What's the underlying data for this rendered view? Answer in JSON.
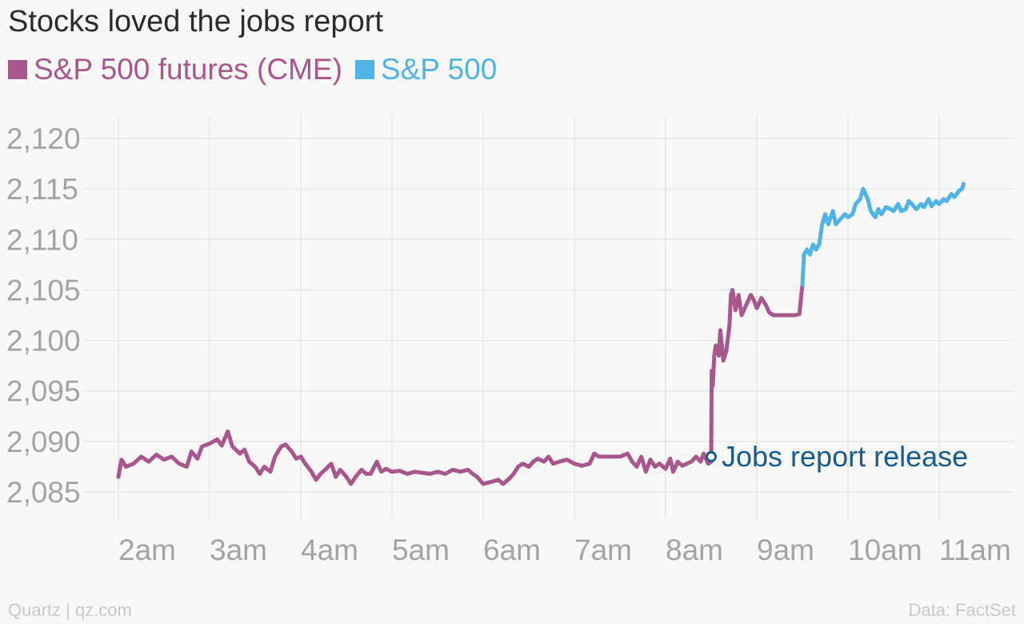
{
  "chart_data": {
    "type": "line",
    "title": "Stocks loved the jobs report",
    "xlabel": "",
    "ylabel": "",
    "x_ticks": [
      "2am",
      "3am",
      "4am",
      "5am",
      "6am",
      "7am",
      "8am",
      "9am",
      "10am",
      "11am"
    ],
    "y_ticks": [
      "2,085",
      "2,090",
      "2,095",
      "2,100",
      "2,105",
      "2,110",
      "2,115",
      "2,120"
    ],
    "ylim": [
      2083,
      2122
    ],
    "xlim": [
      "1:50am",
      "11:45am"
    ],
    "grid": true,
    "legend_position": "top-left",
    "series": [
      {
        "name": "S&P 500 futures (CME)",
        "color": "#a8578d",
        "points": [
          [
            "2:00",
            2086.5
          ],
          [
            "2:02",
            2088.2
          ],
          [
            "2:05",
            2087.5
          ],
          [
            "2:10",
            2087.8
          ],
          [
            "2:15",
            2088.5
          ],
          [
            "2:20",
            2088.0
          ],
          [
            "2:25",
            2088.7
          ],
          [
            "2:30",
            2088.2
          ],
          [
            "2:35",
            2088.5
          ],
          [
            "2:40",
            2087.8
          ],
          [
            "2:45",
            2087.5
          ],
          [
            "2:48",
            2089.0
          ],
          [
            "2:52",
            2088.3
          ],
          [
            "2:55",
            2089.5
          ],
          [
            "3:00",
            2089.8
          ],
          [
            "3:05",
            2090.2
          ],
          [
            "3:08",
            2089.6
          ],
          [
            "3:12",
            2091.0
          ],
          [
            "3:15",
            2089.5
          ],
          [
            "3:20",
            2088.8
          ],
          [
            "3:23",
            2089.2
          ],
          [
            "3:26",
            2088.0
          ],
          [
            "3:30",
            2087.5
          ],
          [
            "3:33",
            2086.8
          ],
          [
            "3:36",
            2087.5
          ],
          [
            "3:40",
            2087.0
          ],
          [
            "3:43",
            2088.5
          ],
          [
            "3:47",
            2089.5
          ],
          [
            "3:50",
            2089.7
          ],
          [
            "3:54",
            2089.0
          ],
          [
            "3:57",
            2088.3
          ],
          [
            "4:00",
            2088.5
          ],
          [
            "4:03",
            2087.8
          ],
          [
            "4:07",
            2087.0
          ],
          [
            "4:10",
            2086.2
          ],
          [
            "4:13",
            2086.8
          ],
          [
            "4:16",
            2087.2
          ],
          [
            "4:20",
            2087.8
          ],
          [
            "4:23",
            2086.5
          ],
          [
            "4:26",
            2087.2
          ],
          [
            "4:30",
            2086.5
          ],
          [
            "4:33",
            2085.8
          ],
          [
            "4:36",
            2086.5
          ],
          [
            "4:40",
            2087.2
          ],
          [
            "4:43",
            2086.8
          ],
          [
            "4:46",
            2086.8
          ],
          [
            "4:50",
            2088.0
          ],
          [
            "4:53",
            2087.0
          ],
          [
            "4:56",
            2087.3
          ],
          [
            "5:00",
            2087.0
          ],
          [
            "5:05",
            2087.1
          ],
          [
            "5:10",
            2086.8
          ],
          [
            "5:15",
            2087.0
          ],
          [
            "5:20",
            2086.9
          ],
          [
            "5:25",
            2086.8
          ],
          [
            "5:30",
            2087.0
          ],
          [
            "5:35",
            2086.8
          ],
          [
            "5:40",
            2087.2
          ],
          [
            "5:45",
            2087.0
          ],
          [
            "5:50",
            2087.2
          ],
          [
            "5:53",
            2086.8
          ],
          [
            "5:56",
            2086.5
          ],
          [
            "6:00",
            2085.8
          ],
          [
            "6:05",
            2086.0
          ],
          [
            "6:10",
            2086.2
          ],
          [
            "6:13",
            2085.8
          ],
          [
            "6:17",
            2086.3
          ],
          [
            "6:20",
            2086.8
          ],
          [
            "6:23",
            2087.5
          ],
          [
            "6:26",
            2087.8
          ],
          [
            "6:30",
            2087.5
          ],
          [
            "6:33",
            2088.0
          ],
          [
            "6:36",
            2088.3
          ],
          [
            "6:40",
            2088.0
          ],
          [
            "6:43",
            2088.5
          ],
          [
            "6:46",
            2087.8
          ],
          [
            "6:50",
            2088.0
          ],
          [
            "6:55",
            2088.2
          ],
          [
            "7:00",
            2087.8
          ],
          [
            "7:05",
            2087.6
          ],
          [
            "7:10",
            2087.8
          ],
          [
            "7:13",
            2088.8
          ],
          [
            "7:16",
            2088.5
          ],
          [
            "7:20",
            2088.5
          ],
          [
            "7:25",
            2088.5
          ],
          [
            "7:30",
            2088.5
          ],
          [
            "7:35",
            2088.8
          ],
          [
            "7:38",
            2088.0
          ],
          [
            "7:41",
            2087.5
          ],
          [
            "7:44",
            2088.5
          ],
          [
            "7:47",
            2087.0
          ],
          [
            "7:50",
            2088.2
          ],
          [
            "7:53",
            2087.5
          ],
          [
            "7:56",
            2087.8
          ],
          [
            "8:00",
            2087.3
          ],
          [
            "8:03",
            2088.3
          ],
          [
            "8:05",
            2087.0
          ],
          [
            "8:08",
            2088.0
          ],
          [
            "8:11",
            2087.6
          ],
          [
            "8:14",
            2087.8
          ],
          [
            "8:17",
            2088.0
          ],
          [
            "8:20",
            2088.5
          ],
          [
            "8:23",
            2088.0
          ],
          [
            "8:25",
            2088.8
          ],
          [
            "8:28",
            2087.8
          ],
          [
            "8:30",
            2088.0
          ],
          [
            "8:30.3",
            2097.0
          ],
          [
            "8:31",
            2095.5
          ],
          [
            "8:32",
            2098.5
          ],
          [
            "8:33",
            2099.5
          ],
          [
            "8:35",
            2098.5
          ],
          [
            "8:36",
            2101.0
          ],
          [
            "8:38",
            2098.0
          ],
          [
            "8:40",
            2099.0
          ],
          [
            "8:42",
            2101.5
          ],
          [
            "8:43",
            2104.5
          ],
          [
            "8:44",
            2105.0
          ],
          [
            "8:46",
            2103.0
          ],
          [
            "8:48",
            2104.5
          ],
          [
            "8:50",
            2102.5
          ],
          [
            "8:53",
            2103.5
          ],
          [
            "8:56",
            2104.5
          ],
          [
            "8:58",
            2104.0
          ],
          [
            "9:00",
            2103.2
          ],
          [
            "9:03",
            2104.2
          ],
          [
            "9:06",
            2103.5
          ],
          [
            "9:08",
            2102.8
          ],
          [
            "9:11",
            2102.5
          ],
          [
            "9:15",
            2102.5
          ],
          [
            "9:20",
            2102.5
          ],
          [
            "9:25",
            2102.5
          ],
          [
            "9:28",
            2102.6
          ],
          [
            "9:30",
            2105.5
          ]
        ]
      },
      {
        "name": "S&P 500",
        "color": "#51b2e5",
        "points": [
          [
            "9:30",
            2105.5
          ],
          [
            "9:31",
            2108.5
          ],
          [
            "9:33",
            2109.0
          ],
          [
            "9:35",
            2108.5
          ],
          [
            "9:37",
            2109.5
          ],
          [
            "9:39",
            2109.0
          ],
          [
            "9:41",
            2109.5
          ],
          [
            "9:43",
            2111.5
          ],
          [
            "9:45",
            2112.5
          ],
          [
            "9:47",
            2111.5
          ],
          [
            "9:50",
            2112.8
          ],
          [
            "9:52",
            2111.5
          ],
          [
            "9:55",
            2112.0
          ],
          [
            "9:58",
            2112.5
          ],
          [
            "10:00",
            2112.2
          ],
          [
            "10:03",
            2112.5
          ],
          [
            "10:05",
            2113.5
          ],
          [
            "10:08",
            2114.0
          ],
          [
            "10:10",
            2115.0
          ],
          [
            "10:13",
            2114.0
          ],
          [
            "10:15",
            2112.8
          ],
          [
            "10:18",
            2112.2
          ],
          [
            "10:20",
            2113.0
          ],
          [
            "10:22",
            2112.5
          ],
          [
            "10:25",
            2113.2
          ],
          [
            "10:28",
            2113.0
          ],
          [
            "10:30",
            2112.8
          ],
          [
            "10:33",
            2113.5
          ],
          [
            "10:35",
            2112.8
          ],
          [
            "10:38",
            2113.0
          ],
          [
            "10:40",
            2113.8
          ],
          [
            "10:42",
            2113.5
          ],
          [
            "10:45",
            2113.0
          ],
          [
            "10:48",
            2113.5
          ],
          [
            "10:50",
            2113.2
          ],
          [
            "10:53",
            2114.0
          ],
          [
            "10:55",
            2113.3
          ],
          [
            "10:58",
            2113.8
          ],
          [
            "11:00",
            2113.5
          ],
          [
            "11:03",
            2114.0
          ],
          [
            "11:05",
            2113.8
          ],
          [
            "11:08",
            2114.5
          ],
          [
            "11:10",
            2114.2
          ],
          [
            "11:13",
            2114.8
          ],
          [
            "11:15",
            2115.0
          ],
          [
            "11:16",
            2115.5
          ]
        ]
      }
    ],
    "annotations": [
      {
        "x": "8:30",
        "y": 2088.5,
        "text": "Jobs report release",
        "color": "#1a5b8e"
      }
    ]
  },
  "footer": {
    "source_left": "Quartz | qz.com",
    "source_right": "Data: FactSet"
  }
}
